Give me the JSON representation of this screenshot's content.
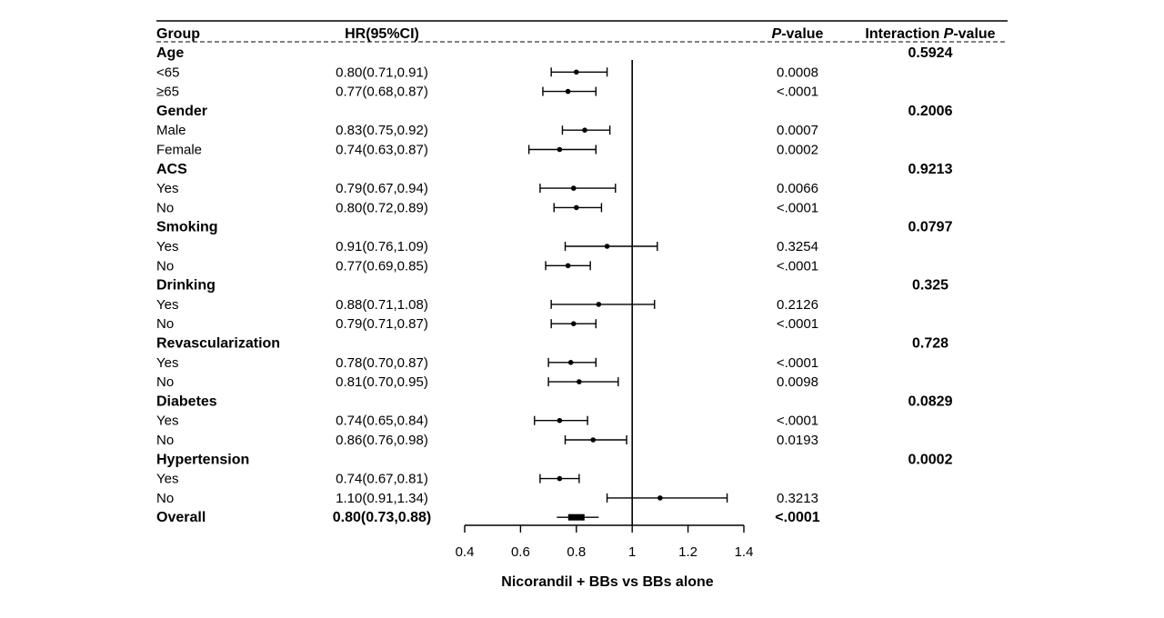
{
  "chart_data": {
    "type": "forest",
    "columns": {
      "group": "Group",
      "hr": "HR(95%CI)",
      "p_prefix": "P",
      "p_suffix": "-value",
      "interaction_prefix": "Interaction ",
      "interaction_p": "P",
      "interaction_suffix": "-value"
    },
    "xlabel": "Nicorandil + BBs vs BBs alone",
    "xlim": [
      0.4,
      1.4
    ],
    "xticks": [
      "0.4",
      "0.6",
      "0.8",
      "1",
      "1.2",
      "1.4"
    ],
    "reference_line": 1,
    "groups": [
      {
        "name": "Age",
        "interaction_p": "0.5924",
        "rows": [
          {
            "label": "<65",
            "hr_text": "0.80(0.71,0.91)",
            "hr": 0.8,
            "lo": 0.71,
            "hi": 0.91,
            "p": "0.0008"
          },
          {
            "label": "≥65",
            "hr_text": "0.77(0.68,0.87)",
            "hr": 0.77,
            "lo": 0.68,
            "hi": 0.87,
            "p": "<.0001"
          }
        ]
      },
      {
        "name": "Gender",
        "interaction_p": "0.2006",
        "rows": [
          {
            "label": "Male",
            "hr_text": "0.83(0.75,0.92)",
            "hr": 0.83,
            "lo": 0.75,
            "hi": 0.92,
            "p": "0.0007"
          },
          {
            "label": "Female",
            "hr_text": "0.74(0.63,0.87)",
            "hr": 0.74,
            "lo": 0.63,
            "hi": 0.87,
            "p": "0.0002"
          }
        ]
      },
      {
        "name": "ACS",
        "interaction_p": "0.9213",
        "rows": [
          {
            "label": "Yes",
            "hr_text": "0.79(0.67,0.94)",
            "hr": 0.79,
            "lo": 0.67,
            "hi": 0.94,
            "p": "0.0066"
          },
          {
            "label": "No",
            "hr_text": "0.80(0.72,0.89)",
            "hr": 0.8,
            "lo": 0.72,
            "hi": 0.89,
            "p": "<.0001"
          }
        ]
      },
      {
        "name": "Smoking",
        "interaction_p": "0.0797",
        "rows": [
          {
            "label": "Yes",
            "hr_text": "0.91(0.76,1.09)",
            "hr": 0.91,
            "lo": 0.76,
            "hi": 1.09,
            "p": "0.3254"
          },
          {
            "label": "No",
            "hr_text": "0.77(0.69,0.85)",
            "hr": 0.77,
            "lo": 0.69,
            "hi": 0.85,
            "p": "<.0001"
          }
        ]
      },
      {
        "name": "Drinking",
        "interaction_p": "0.325",
        "rows": [
          {
            "label": "Yes",
            "hr_text": "0.88(0.71,1.08)",
            "hr": 0.88,
            "lo": 0.71,
            "hi": 1.08,
            "p": "0.2126"
          },
          {
            "label": "No",
            "hr_text": "0.79(0.71,0.87)",
            "hr": 0.79,
            "lo": 0.71,
            "hi": 0.87,
            "p": "<.0001"
          }
        ]
      },
      {
        "name": "Revascularization",
        "interaction_p": "0.728",
        "rows": [
          {
            "label": "Yes",
            "hr_text": "0.78(0.70,0.87)",
            "hr": 0.78,
            "lo": 0.7,
            "hi": 0.87,
            "p": "<.0001"
          },
          {
            "label": "No",
            "hr_text": "0.81(0.70,0.95)",
            "hr": 0.81,
            "lo": 0.7,
            "hi": 0.95,
            "p": "0.0098"
          }
        ]
      },
      {
        "name": "Diabetes",
        "interaction_p": "0.0829",
        "rows": [
          {
            "label": "Yes",
            "hr_text": "0.74(0.65,0.84)",
            "hr": 0.74,
            "lo": 0.65,
            "hi": 0.84,
            "p": "<.0001"
          },
          {
            "label": "No",
            "hr_text": "0.86(0.76,0.98)",
            "hr": 0.86,
            "lo": 0.76,
            "hi": 0.98,
            "p": "0.0193"
          }
        ]
      },
      {
        "name": "Hypertension",
        "interaction_p": "0.0002",
        "rows": [
          {
            "label": "Yes",
            "hr_text": "0.74(0.67,0.81)",
            "hr": 0.74,
            "lo": 0.67,
            "hi": 0.81,
            "p": ""
          },
          {
            "label": "No",
            "hr_text": "1.10(0.91,1.34)",
            "hr": 1.1,
            "lo": 0.91,
            "hi": 1.34,
            "p": "0.3213"
          }
        ]
      }
    ],
    "overall": {
      "label": "Overall",
      "hr_text": "0.80(0.73,0.88)",
      "hr": 0.8,
      "lo": 0.73,
      "hi": 0.88,
      "p": "<.0001"
    }
  }
}
